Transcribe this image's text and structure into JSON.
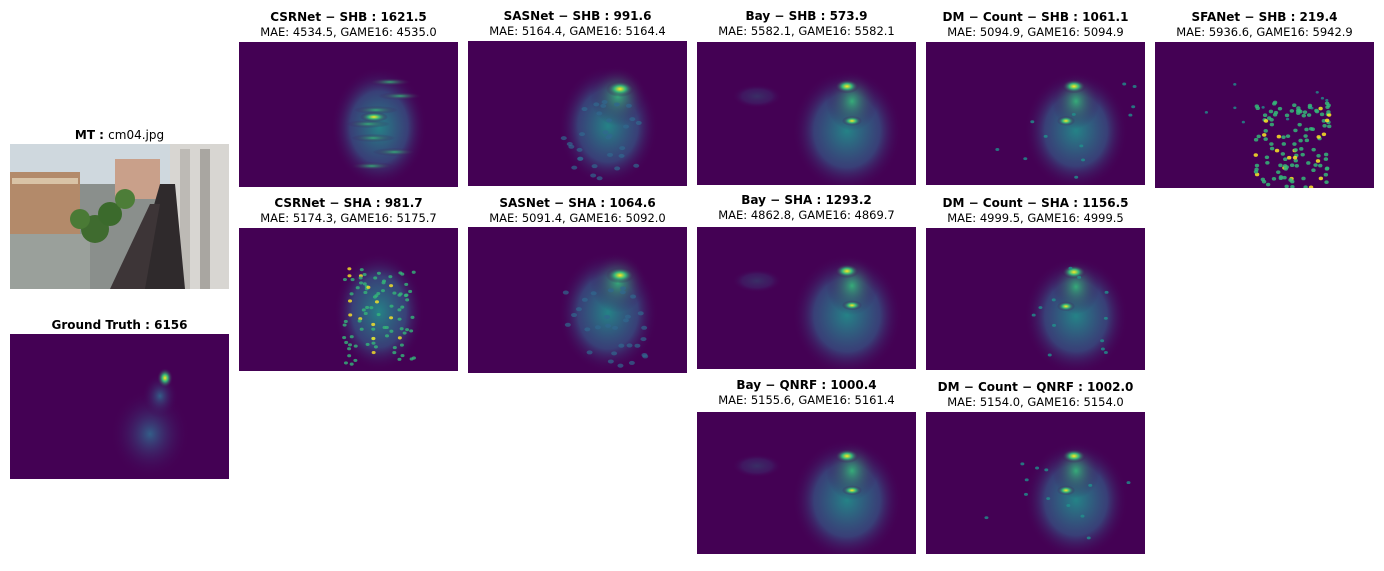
{
  "input": {
    "title_bold": "MT :",
    "title_rest": "cm04.jpg",
    "image_desc": "photo"
  },
  "ground_truth": {
    "title": "Ground Truth : 6156"
  },
  "panels": [
    {
      "key": "csrnet_shb",
      "title": "CSRNet − SHB : 1621.5",
      "sub": "MAE: 4534.5, GAME16: 4535.0"
    },
    {
      "key": "sasnet_shb",
      "title": "SASNet − SHB : 991.6",
      "sub": "MAE: 5164.4, GAME16: 5164.4"
    },
    {
      "key": "bay_shb",
      "title": "Bay − SHB : 573.9",
      "sub": "MAE: 5582.1, GAME16: 5582.1"
    },
    {
      "key": "dm_shb",
      "title": "DM − Count − SHB : 1061.1",
      "sub": "MAE: 5094.9, GAME16: 5094.9"
    },
    {
      "key": "sfanet_shb",
      "title": "SFANet − SHB : 219.4",
      "sub": "MAE: 5936.6, GAME16: 5942.9"
    },
    {
      "key": "csrnet_sha",
      "title": "CSRNet − SHA : 981.7",
      "sub": "MAE: 5174.3, GAME16: 5175.7"
    },
    {
      "key": "sasnet_sha",
      "title": "SASNet − SHA : 1064.6",
      "sub": "MAE: 5091.4, GAME16: 5092.0"
    },
    {
      "key": "bay_sha",
      "title": "Bay − SHA : 1293.2",
      "sub": "MAE: 4862.8, GAME16: 4869.7"
    },
    {
      "key": "dm_sha",
      "title": "DM − Count − SHA : 1156.5",
      "sub": "MAE: 4999.5, GAME16: 4999.5"
    },
    {
      "key": "bay_qnrf",
      "title": "Bay − QNRF : 1000.4",
      "sub": "MAE: 5155.6, GAME16: 5161.4"
    },
    {
      "key": "dm_qnrf",
      "title": "DM − Count − QNRF : 1002.0",
      "sub": "MAE: 5154.0, GAME16: 5154.0"
    }
  ],
  "colors": {
    "viridis_dark": "#440154",
    "viridis_blue": "#31688e",
    "viridis_teal": "#21918c",
    "viridis_green": "#35b779",
    "viridis_yellow": "#fde725"
  }
}
